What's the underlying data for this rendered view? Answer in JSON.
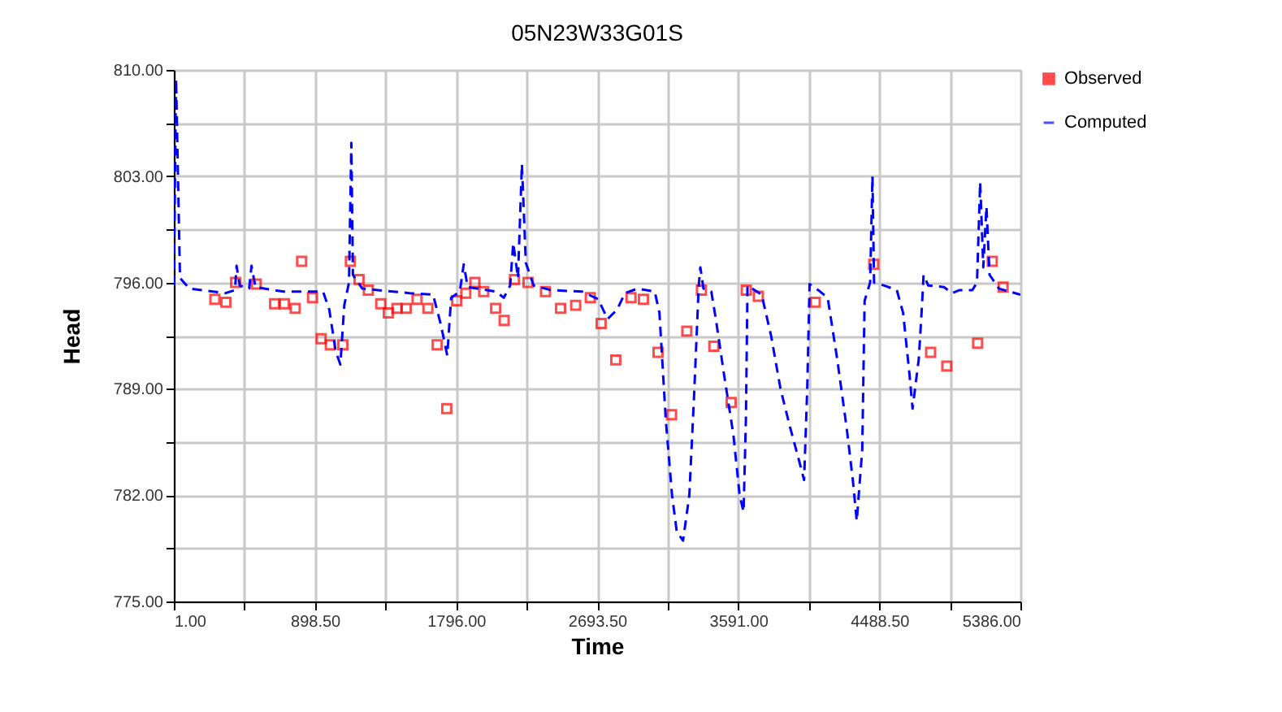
{
  "chart_data": {
    "type": "line",
    "title": "05N23W33G01S",
    "xlabel": "Time",
    "ylabel": "Head",
    "xlim": [
      1,
      5386
    ],
    "ylim": [
      775,
      810
    ],
    "xticks": [
      {
        "value": 1,
        "label": "1.00"
      },
      {
        "value": 449.75,
        "label": null
      },
      {
        "value": 898.5,
        "label": "898.50"
      },
      {
        "value": 1347.25,
        "label": null
      },
      {
        "value": 1796,
        "label": "1796.00"
      },
      {
        "value": 2244.75,
        "label": null
      },
      {
        "value": 2693.5,
        "label": "2693.50"
      },
      {
        "value": 3142.25,
        "label": null
      },
      {
        "value": 3591,
        "label": "3591.00"
      },
      {
        "value": 4039.75,
        "label": null
      },
      {
        "value": 4488.5,
        "label": "4488.50"
      },
      {
        "value": 4937.25,
        "label": null
      },
      {
        "value": 5386,
        "label": "5386.00"
      }
    ],
    "yticks": [
      {
        "value": 775,
        "label": "775.00"
      },
      {
        "value": 778.5,
        "label": null
      },
      {
        "value": 782,
        "label": "782.00"
      },
      {
        "value": 785.5,
        "label": null
      },
      {
        "value": 789,
        "label": "789.00"
      },
      {
        "value": 792.5,
        "label": null
      },
      {
        "value": 796,
        "label": "796.00"
      },
      {
        "value": 799.5,
        "label": null
      },
      {
        "value": 803,
        "label": "803.00"
      },
      {
        "value": 806.5,
        "label": null
      },
      {
        "value": 810,
        "label": "810.00"
      }
    ],
    "grid": true,
    "legend": "top right",
    "series": [
      {
        "name": "Observed",
        "type": "scatter",
        "marker": "square",
        "color": "#ff0000",
        "x": [
          262,
          332,
          394,
          525,
          642,
          704,
          773,
          814,
          883,
          938,
          996,
          1076,
          1124,
          1179,
          1238,
          1317,
          1365,
          1420,
          1479,
          1548,
          1617,
          1676,
          1737,
          1800,
          1858,
          1916,
          1972,
          2048,
          2102,
          2168,
          2254,
          2365,
          2461,
          2557,
          2650,
          2719,
          2812,
          2909,
          2988,
          3081,
          3167,
          3264,
          3357,
          3436,
          3546,
          3642,
          3719,
          4081,
          4453,
          4815,
          4918,
          5114,
          5207,
          5276
        ],
        "values": [
          794.9,
          794.7,
          796.0,
          795.9,
          794.6,
          794.6,
          794.3,
          797.4,
          795.0,
          792.3,
          791.9,
          791.9,
          797.4,
          796.2,
          795.5,
          794.6,
          794.0,
          794.3,
          794.3,
          794.9,
          794.3,
          791.9,
          787.7,
          794.8,
          795.3,
          796.0,
          795.4,
          794.3,
          793.5,
          796.2,
          796.0,
          795.4,
          794.3,
          794.5,
          795.0,
          793.3,
          790.9,
          795.0,
          794.9,
          791.4,
          787.3,
          792.8,
          795.5,
          791.8,
          788.1,
          795.5,
          795.1,
          794.7,
          797.2,
          791.4,
          790.5,
          792.0,
          797.4,
          795.7
        ]
      },
      {
        "name": "Computed",
        "line_style": "dashed",
        "color": "#0000ff",
        "x": [
          1,
          15,
          40,
          100,
          330,
          390,
          400,
          420,
          480,
          495,
          520,
          700,
          950,
          990,
          1030,
          1060,
          1085,
          1115,
          1130,
          1140,
          1200,
          1500,
          1650,
          1700,
          1740,
          1765,
          1820,
          1845,
          1870,
          2050,
          2100,
          2140,
          2160,
          2190,
          2215,
          2240,
          2290,
          2400,
          2600,
          2700,
          2760,
          2820,
          2870,
          2950,
          3060,
          3090,
          3130,
          3170,
          3200,
          3240,
          3280,
          3310,
          3340,
          3350,
          3370,
          3420,
          3450,
          3500,
          3560,
          3600,
          3625,
          3640,
          3650,
          3680,
          3740,
          3800,
          3860,
          3920,
          3980,
          4010,
          4030,
          4045,
          4100,
          4160,
          4220,
          4280,
          4320,
          4345,
          4380,
          4395,
          4430,
          4445,
          4455,
          4520,
          4600,
          4640,
          4680,
          4700,
          4740,
          4760,
          4770,
          4800,
          4900,
          4950,
          5000,
          5080,
          5110,
          5130,
          5150,
          5170,
          5190,
          5250,
          5386
        ],
        "values": [
          795.8,
          809.4,
          796.3,
          795.6,
          795.3,
          795.5,
          797.1,
          795.8,
          795.6,
          797.1,
          795.7,
          795.4,
          795.4,
          794.2,
          791.5,
          790.6,
          794.5,
          796.0,
          805.2,
          796.5,
          795.6,
          795.3,
          795.2,
          793.2,
          791.2,
          795.0,
          795.4,
          797.2,
          795.7,
          795.4,
          795.0,
          795.8,
          798.6,
          796.3,
          803.8,
          797.3,
          795.8,
          795.5,
          795.4,
          794.9,
          793.6,
          794.2,
          795.3,
          795.6,
          795.4,
          794.0,
          787.0,
          782.0,
          779.6,
          779.0,
          782.0,
          788.5,
          795.8,
          797.0,
          795.6,
          795.4,
          793.5,
          790.0,
          786.0,
          782.0,
          780.9,
          787.0,
          795.8,
          795.6,
          795.2,
          792.5,
          789.0,
          786.5,
          784.2,
          783.0,
          789.0,
          795.9,
          795.5,
          795.0,
          791.0,
          786.5,
          783.0,
          780.3,
          785.0,
          794.8,
          796.0,
          803.0,
          796.0,
          795.8,
          795.5,
          794.0,
          790.0,
          787.7,
          791.0,
          794.5,
          796.5,
          795.8,
          795.7,
          795.3,
          795.5,
          795.5,
          796.0,
          802.6,
          797.0,
          801.0,
          796.5,
          795.6,
          795.2
        ]
      }
    ]
  }
}
